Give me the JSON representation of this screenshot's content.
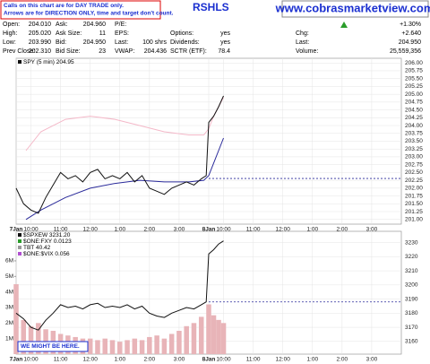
{
  "notes": [
    "Calls on this chart are for DAY TRADE only.",
    "Arrows are for DIRECTION ONLY, time and target don't count."
  ],
  "title": "RSHLS",
  "url": "www.cobrasmarketview.com",
  "quote": {
    "rows": [
      [
        {
          "label": "Open:",
          "value": "204.010"
        },
        {
          "label": "Ask:",
          "value": "204.960"
        },
        {
          "label": "P/E:"
        },
        null,
        {
          "value": "+1.30%"
        }
      ],
      [
        {
          "label": "High:",
          "value": "205.020"
        },
        {
          "label": "Ask Size:",
          "value": "11"
        },
        {
          "label": "EPS:"
        },
        {
          "label": "Options:",
          "value": "yes"
        },
        {
          "label": "Chg:",
          "value": "+2.640"
        }
      ],
      [
        {
          "label": "Low:",
          "value": "203.990"
        },
        {
          "label": "Bid:",
          "value": "204.950"
        },
        {
          "label": "Last:",
          "value": "100 shrs"
        },
        {
          "label": "Dividends:",
          "value": "yes"
        },
        {
          "label": "Last:",
          "value": "204.950"
        }
      ],
      [
        {
          "label": "Prev Close:",
          "value": "202.310"
        },
        {
          "label": "Bid Size:",
          "value": "23"
        },
        {
          "label": "VWAP:",
          "value": "204.436"
        },
        {
          "label": "SCTR (ETF):",
          "value": "78.4"
        },
        {
          "label": "Volume:",
          "value": "25,559,356"
        }
      ]
    ]
  },
  "chart_data": [
    {
      "type": "line",
      "legend": "SPY (5 min) 204.95",
      "ylim": [
        200.85,
        206.15
      ],
      "yticks": [
        {
          "value": 201,
          "label": "201.00"
        },
        {
          "value": 201.25,
          "label": "201.25"
        },
        {
          "value": 201.5,
          "label": "201.50"
        },
        {
          "value": 201.75,
          "label": "201.75"
        },
        {
          "value": 202,
          "label": "202.00"
        },
        {
          "value": 202.25,
          "label": "202.25"
        },
        {
          "value": 202.5,
          "label": "202.50"
        },
        {
          "value": 202.75,
          "label": "202.75"
        },
        {
          "value": 203,
          "label": "203.00"
        },
        {
          "value": 203.25,
          "label": "203.25"
        },
        {
          "value": 203.5,
          "label": "203.50"
        },
        {
          "value": 203.75,
          "label": "203.75"
        },
        {
          "value": 204,
          "label": "204.00"
        },
        {
          "value": 204.25,
          "label": "204.25"
        },
        {
          "value": 204.5,
          "label": "204.50"
        },
        {
          "value": 204.75,
          "label": "204.75"
        },
        {
          "value": 205,
          "label": "205.00"
        },
        {
          "value": 205.25,
          "label": "205.25"
        },
        {
          "value": 205.5,
          "label": "205.50"
        },
        {
          "value": 205.75,
          "label": "205.75"
        },
        {
          "value": 206,
          "label": "206.00"
        }
      ],
      "xlim": [
        0,
        156
      ],
      "xticks": [
        {
          "value": 0,
          "label": "7Jan"
        },
        {
          "value": 6,
          "label": "10:00"
        },
        {
          "value": 18,
          "label": "11:00"
        },
        {
          "value": 30,
          "label": "12:00"
        },
        {
          "value": 42,
          "label": "1:00"
        },
        {
          "value": 54,
          "label": "2:00"
        },
        {
          "value": 66,
          "label": "3:00"
        },
        {
          "value": 78,
          "label": "8Jan"
        },
        {
          "value": 84,
          "label": "10:00"
        },
        {
          "value": 96,
          "label": "11:00"
        },
        {
          "value": 108,
          "label": "12:00"
        },
        {
          "value": 120,
          "label": "1:00"
        },
        {
          "value": 132,
          "label": "2:00"
        },
        {
          "value": 144,
          "label": "3:00"
        }
      ],
      "ref_line": 202.31,
      "series": [
        {
          "color": "#f4b8c8",
          "x": [
            4,
            10,
            20,
            30,
            40,
            50,
            60,
            70,
            76,
            78,
            80,
            82,
            84
          ],
          "values": [
            203.2,
            203.8,
            204.2,
            204.3,
            204.2,
            204.0,
            203.8,
            203.7,
            203.7,
            203.9,
            204.3,
            204.6,
            204.9
          ]
        },
        {
          "color": "#2a2a9a",
          "x": [
            4,
            10,
            20,
            30,
            40,
            50,
            60,
            70,
            76,
            78,
            80,
            82,
            84
          ],
          "values": [
            201.0,
            201.3,
            201.7,
            202.0,
            202.15,
            202.25,
            202.2,
            202.2,
            202.25,
            202.4,
            202.8,
            203.2,
            203.6
          ]
        },
        {
          "color": "#111111",
          "x": [
            0,
            3,
            6,
            9,
            12,
            15,
            18,
            21,
            24,
            27,
            30,
            33,
            36,
            39,
            42,
            45,
            48,
            51,
            54,
            57,
            60,
            63,
            66,
            69,
            72,
            75,
            77,
            78,
            80,
            82,
            84
          ],
          "values": [
            202.0,
            201.5,
            201.3,
            201.2,
            201.7,
            202.1,
            202.5,
            202.3,
            202.4,
            202.2,
            202.5,
            202.6,
            202.3,
            202.4,
            202.3,
            202.5,
            202.2,
            202.4,
            202.0,
            201.9,
            201.8,
            202.0,
            202.1,
            202.2,
            202.1,
            202.3,
            202.4,
            204.1,
            204.3,
            204.6,
            204.95
          ]
        }
      ]
    },
    {
      "type": "volume",
      "legend": [
        "$SPXEW 3231.20",
        "$ONE:FXY 0.0123",
        "TBT 40.42",
        "$ONE:$VIX 0.056"
      ],
      "legend_colors": [
        "#111111",
        "#2a9d2a",
        "#999999",
        "#b04fd0"
      ],
      "annotation": "WE MIGHT BE HERE.",
      "ylim": [
        0,
        7900000
      ],
      "yticks": [
        {
          "value": 1000000,
          "label": "1M"
        },
        {
          "value": 2000000,
          "label": "2M"
        },
        {
          "value": 3000000,
          "label": "3M"
        },
        {
          "value": 4000000,
          "label": "4M"
        },
        {
          "value": 5000000,
          "label": "5M"
        },
        {
          "value": 6000000,
          "label": "6M"
        }
      ],
      "y2lim": [
        3151,
        3238
      ],
      "y2ticks": [
        3160,
        3170,
        3180,
        3190,
        3200,
        3210,
        3220,
        3230
      ],
      "xlim": [
        0,
        156
      ],
      "xticks": [
        {
          "value": 0,
          "label": "7Jan"
        },
        {
          "value": 6,
          "label": "10:00"
        },
        {
          "value": 18,
          "label": "11:00"
        },
        {
          "value": 30,
          "label": "12:00"
        },
        {
          "value": 42,
          "label": "1:00"
        },
        {
          "value": 54,
          "label": "2:00"
        },
        {
          "value": 66,
          "label": "3:00"
        },
        {
          "value": 78,
          "label": "8Jan"
        },
        {
          "value": 84,
          "label": "10:00"
        },
        {
          "value": 96,
          "label": "11:00"
        },
        {
          "value": 108,
          "label": "12:00"
        },
        {
          "value": 120,
          "label": "1:00"
        },
        {
          "value": 132,
          "label": "2:00"
        },
        {
          "value": 144,
          "label": "3:00"
        }
      ],
      "ref_line": 3188,
      "bars": {
        "color": "#e8b4b8",
        "x": [
          0,
          3,
          6,
          9,
          12,
          15,
          18,
          21,
          24,
          27,
          30,
          33,
          36,
          39,
          42,
          45,
          48,
          51,
          54,
          57,
          60,
          63,
          66,
          69,
          72,
          75,
          78,
          80,
          82,
          84
        ],
        "values": [
          4500000,
          2200000,
          1800000,
          2000000,
          1600000,
          1500000,
          1300000,
          1200000,
          1100000,
          1000000,
          1000000,
          900000,
          1000000,
          900000,
          800000,
          900000,
          1000000,
          900000,
          1100000,
          1200000,
          1000000,
          1300000,
          1500000,
          1800000,
          2000000,
          2400000,
          3200000,
          2500000,
          2200000,
          2000000
        ]
      },
      "series": [
        {
          "color": "#111111",
          "axis": "y2",
          "x": [
            0,
            3,
            6,
            9,
            12,
            15,
            18,
            21,
            24,
            27,
            30,
            33,
            36,
            39,
            42,
            45,
            48,
            51,
            54,
            57,
            60,
            63,
            66,
            69,
            72,
            75,
            77,
            78,
            80,
            82,
            84
          ],
          "values": [
            3180,
            3176,
            3170,
            3168,
            3175,
            3180,
            3186,
            3184,
            3185,
            3183,
            3186,
            3187,
            3184,
            3185,
            3184,
            3186,
            3183,
            3185,
            3180,
            3178,
            3177,
            3180,
            3182,
            3184,
            3183,
            3186,
            3188,
            3222,
            3225,
            3229,
            3231.2
          ]
        }
      ]
    }
  ]
}
